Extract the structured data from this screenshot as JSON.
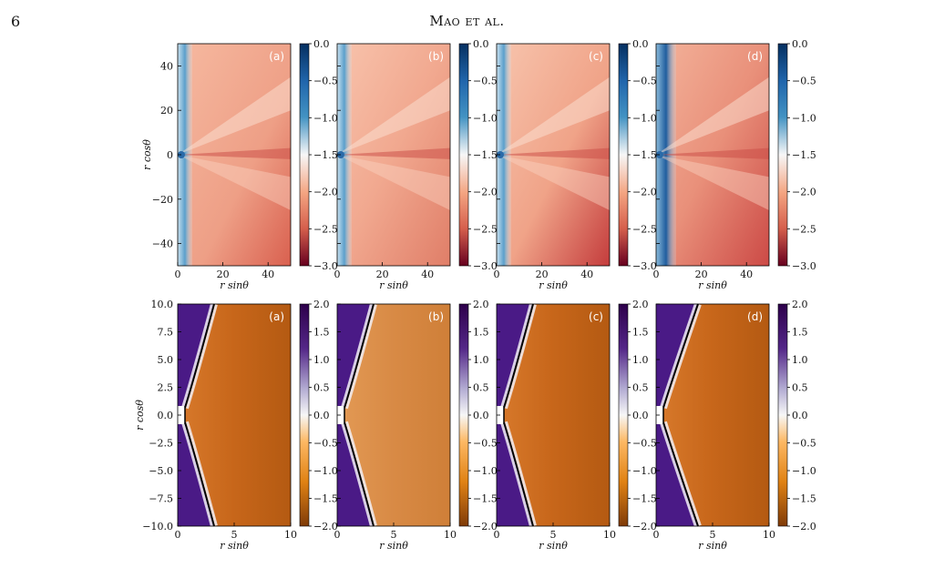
{
  "page": {
    "number": "6",
    "running_head": "Mao et al."
  },
  "colors": {
    "top_colormap": [
      "#67001f",
      "#d6604d",
      "#fddbc7",
      "#f7f7f7",
      "#d1e5f0",
      "#4393c3",
      "#053061"
    ],
    "bottom_colormap": [
      "#7f3b08",
      "#e08214",
      "#fee0b6",
      "#f7f7f7",
      "#d8daeb",
      "#8073ac",
      "#2d004b"
    ]
  },
  "figure": {
    "top_row": {
      "panels": [
        "(a)",
        "(b)",
        "(c)",
        "(d)"
      ],
      "xlabel": "r sinθ",
      "ylabel": "r cosθ",
      "xticks": [
        "0",
        "20",
        "40"
      ],
      "yticks": [
        "40",
        "20",
        "0",
        "−20",
        "−40"
      ],
      "colorbar_ticks": [
        "0.0",
        "−0.5",
        "−1.0",
        "−1.5",
        "−2.0",
        "−2.5",
        "−3.0"
      ],
      "xlim": [
        0,
        50
      ],
      "ylim": [
        -50,
        50
      ],
      "clim": [
        -3.0,
        0.0
      ]
    },
    "bottom_row": {
      "panels": [
        "(a)",
        "(b)",
        "(c)",
        "(d)"
      ],
      "xlabel": "r sinθ",
      "ylabel": "r cosθ",
      "xticks": [
        "0",
        "5",
        "10"
      ],
      "yticks": [
        "10.0",
        "7.5",
        "5.0",
        "2.5",
        "0.0",
        "−2.5",
        "−5.0",
        "−7.5",
        "−10.0"
      ],
      "colorbar_ticks": [
        "2.0",
        "1.5",
        "1.0",
        "0.5",
        "0.0",
        "−0.5",
        "−1.0",
        "−1.5",
        "−2.0"
      ],
      "xlim": [
        0,
        10
      ],
      "ylim": [
        -10,
        10
      ],
      "clim": [
        -2.0,
        2.0
      ]
    }
  }
}
